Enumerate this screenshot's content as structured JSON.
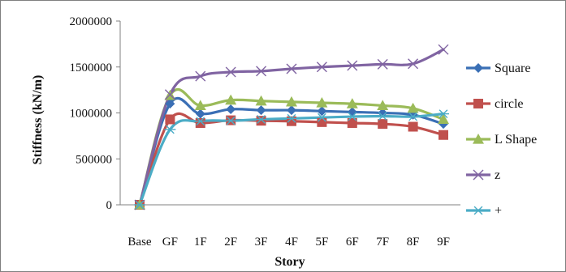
{
  "chart_data": {
    "type": "line",
    "title": "",
    "xlabel": "Story",
    "ylabel": "Stiffness (kN/m)",
    "ylim": [
      0,
      2000000
    ],
    "yticks": [
      0,
      500000,
      1000000,
      1500000,
      2000000
    ],
    "ytick_labels": [
      "0",
      "500000",
      "1000000",
      "1500000",
      "2000000"
    ],
    "categories": [
      "Base",
      "GF",
      "1F",
      "2F",
      "3F",
      "4F",
      "5F",
      "6F",
      "7F",
      "8F",
      "9F"
    ],
    "grid": false,
    "legend_position": "right",
    "series": [
      {
        "name": "Square",
        "color": "#3a6fb5",
        "marker": "diamond",
        "values": [
          0,
          1100000,
          990000,
          1040000,
          1030000,
          1030000,
          1020000,
          1010000,
          1000000,
          980000,
          880000
        ]
      },
      {
        "name": "circle",
        "color": "#c0504d",
        "marker": "square",
        "values": [
          0,
          930000,
          890000,
          920000,
          915000,
          910000,
          900000,
          890000,
          880000,
          850000,
          760000
        ]
      },
      {
        "name": "L Shape",
        "color": "#9bbb59",
        "marker": "triangle",
        "values": [
          0,
          1190000,
          1080000,
          1140000,
          1130000,
          1120000,
          1110000,
          1100000,
          1080000,
          1050000,
          930000
        ]
      },
      {
        "name": "z",
        "color": "#8064a2",
        "marker": "x",
        "values": [
          0,
          1200000,
          1400000,
          1445000,
          1455000,
          1480000,
          1500000,
          1515000,
          1530000,
          1535000,
          1690000
        ]
      },
      {
        "name": "+",
        "color": "#4bacc6",
        "marker": "asterisk",
        "values": [
          0,
          820000,
          910000,
          915000,
          930000,
          940000,
          950000,
          960000,
          965000,
          960000,
          990000
        ]
      }
    ]
  }
}
